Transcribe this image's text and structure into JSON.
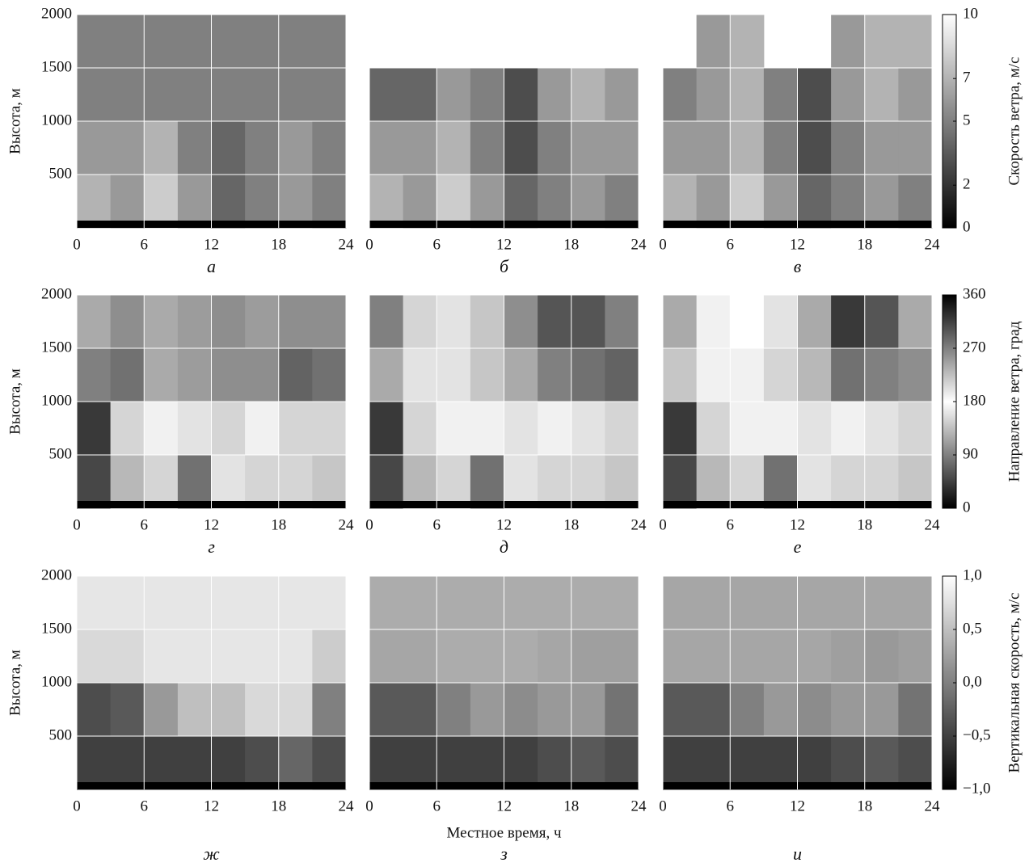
{
  "chart_data": [
    {
      "type": "heatmap",
      "title": "а",
      "ylabel": "Высота, м",
      "xlim": [
        0,
        24
      ],
      "ylim": [
        0,
        2000
      ],
      "xticks": [
        0,
        6,
        12,
        18,
        24
      ],
      "yticks": [
        500,
        1000,
        1500,
        2000
      ],
      "x": [
        1.5,
        4.5,
        7.5,
        10.5,
        13.5,
        16.5,
        19.5,
        22.5
      ],
      "y": [
        250,
        750,
        1250,
        1750
      ],
      "z": [
        [
          7,
          6,
          8,
          6,
          4,
          5,
          6,
          5
        ],
        [
          6,
          6,
          7,
          5,
          4,
          5,
          6,
          5
        ],
        [
          5,
          5,
          5,
          5,
          5,
          5,
          5,
          5
        ],
        [
          5,
          5,
          5,
          5,
          5,
          5,
          5,
          5
        ]
      ]
    },
    {
      "type": "heatmap",
      "title": "б",
      "xlim": [
        0,
        24
      ],
      "ylim": [
        0,
        2000
      ],
      "xticks": [
        0,
        6,
        12,
        18,
        24
      ],
      "yticks": [
        500,
        1000,
        1500,
        2000
      ],
      "x": [
        1.5,
        4.5,
        7.5,
        10.5,
        13.5,
        16.5,
        19.5,
        22.5
      ],
      "y": [
        250,
        750,
        1250,
        1750
      ],
      "z": [
        [
          7,
          6,
          8,
          6,
          4,
          5,
          6,
          5
        ],
        [
          6,
          6,
          7,
          5,
          3,
          5,
          6,
          6
        ],
        [
          4,
          4,
          6,
          5,
          3,
          6,
          7,
          6
        ],
        [
          null,
          null,
          null,
          null,
          null,
          null,
          null,
          null
        ]
      ]
    },
    {
      "type": "heatmap",
      "title": "в",
      "xlim": [
        0,
        24
      ],
      "ylim": [
        0,
        2000
      ],
      "xticks": [
        0,
        6,
        12,
        18,
        24
      ],
      "yticks": [
        500,
        1000,
        1500,
        2000
      ],
      "x": [
        1.5,
        4.5,
        7.5,
        10.5,
        13.5,
        16.5,
        19.5,
        22.5
      ],
      "y": [
        250,
        750,
        1250,
        1750
      ],
      "z": [
        [
          7,
          6,
          8,
          6,
          4,
          5,
          6,
          5
        ],
        [
          6,
          6,
          7,
          5,
          3,
          5,
          6,
          6
        ],
        [
          5,
          6,
          7,
          5,
          3,
          6,
          7,
          6
        ],
        [
          null,
          6,
          7,
          null,
          null,
          6,
          7,
          7
        ]
      ],
      "colorbar": {
        "label": "Скорость ветра, м/с",
        "colormap": "gray",
        "lim": [
          0,
          10
        ],
        "ticks": [
          0,
          2,
          5,
          7,
          10
        ]
      }
    },
    {
      "type": "heatmap",
      "title": "г",
      "ylabel": "Высота, м",
      "xlim": [
        0,
        24
      ],
      "ylim": [
        0,
        2000
      ],
      "xticks": [
        0,
        6,
        12,
        18,
        24
      ],
      "yticks": [
        500,
        1000,
        1500,
        2000
      ],
      "x": [
        1.5,
        4.5,
        7.5,
        10.5,
        13.5,
        16.5,
        19.5,
        22.5
      ],
      "y": [
        250,
        750,
        1250,
        1750
      ],
      "z": [
        [
          50,
          130,
          150,
          80,
          160,
          150,
          150,
          140
        ],
        [
          40,
          150,
          170,
          160,
          150,
          170,
          150,
          150
        ],
        [
          90,
          80,
          120,
          110,
          100,
          100,
          70,
          80
        ],
        [
          120,
          100,
          120,
          110,
          100,
          110,
          100,
          100
        ]
      ]
    },
    {
      "type": "heatmap",
      "title": "д",
      "xlim": [
        0,
        24
      ],
      "ylim": [
        0,
        2000
      ],
      "xticks": [
        0,
        6,
        12,
        18,
        24
      ],
      "yticks": [
        500,
        1000,
        1500,
        2000
      ],
      "x": [
        1.5,
        4.5,
        7.5,
        10.5,
        13.5,
        16.5,
        19.5,
        22.5
      ],
      "y": [
        250,
        750,
        1250,
        1750
      ],
      "z": [
        [
          50,
          130,
          150,
          80,
          160,
          150,
          150,
          140
        ],
        [
          40,
          150,
          170,
          170,
          200,
          170,
          160,
          150
        ],
        [
          120,
          160,
          160,
          140,
          120,
          90,
          80,
          70
        ],
        [
          90,
          150,
          160,
          140,
          100,
          60,
          60,
          90
        ]
      ]
    },
    {
      "type": "heatmap",
      "title": "е",
      "xlim": [
        0,
        24
      ],
      "ylim": [
        0,
        2000
      ],
      "xticks": [
        0,
        6,
        12,
        18,
        24
      ],
      "yticks": [
        500,
        1000,
        1500,
        2000
      ],
      "x": [
        1.5,
        4.5,
        7.5,
        10.5,
        13.5,
        16.5,
        19.5,
        22.5
      ],
      "y": [
        250,
        750,
        1250,
        1750
      ],
      "z": [
        [
          50,
          130,
          150,
          80,
          160,
          150,
          150,
          140
        ],
        [
          40,
          150,
          170,
          170,
          200,
          170,
          160,
          150
        ],
        [
          140,
          170,
          170,
          150,
          130,
          80,
          90,
          100
        ],
        [
          120,
          170,
          180,
          160,
          120,
          40,
          60,
          120
        ]
      ],
      "colorbar": {
        "label": "Направление ветра, град",
        "colormap": "cyclic-gray",
        "lim": [
          0,
          360
        ],
        "ticks": [
          0,
          90,
          180,
          270,
          360
        ]
      }
    },
    {
      "type": "heatmap",
      "title": "ж",
      "ylabel": "Высота, м",
      "xlim": [
        0,
        24
      ],
      "ylim": [
        0,
        2000
      ],
      "xticks": [
        0,
        6,
        12,
        18,
        24
      ],
      "yticks": [
        500,
        1000,
        1500,
        2000
      ],
      "x": [
        1.5,
        4.5,
        7.5,
        10.5,
        13.5,
        16.5,
        19.5,
        22.5
      ],
      "y": [
        250,
        750,
        1250,
        1750
      ],
      "z": [
        [
          -0.5,
          -0.5,
          -0.5,
          -0.5,
          -0.5,
          -0.4,
          -0.2,
          -0.4
        ],
        [
          -0.4,
          -0.3,
          0.2,
          0.5,
          0.5,
          0.7,
          0.7,
          0.0
        ],
        [
          0.7,
          0.7,
          0.8,
          0.8,
          0.8,
          0.8,
          0.8,
          0.6
        ],
        [
          0.8,
          0.8,
          0.8,
          0.8,
          0.8,
          0.8,
          0.8,
          0.8
        ]
      ]
    },
    {
      "type": "heatmap",
      "title": "з",
      "xlabel": "Местное время, ч",
      "xlim": [
        0,
        24
      ],
      "ylim": [
        0,
        2000
      ],
      "xticks": [
        0,
        6,
        12,
        18,
        24
      ],
      "yticks": [
        500,
        1000,
        1500,
        2000
      ],
      "x": [
        1.5,
        4.5,
        7.5,
        10.5,
        13.5,
        16.5,
        19.5,
        22.5
      ],
      "y": [
        250,
        750,
        1250,
        1750
      ],
      "z": [
        [
          -0.5,
          -0.5,
          -0.5,
          -0.5,
          -0.5,
          -0.4,
          -0.3,
          -0.4
        ],
        [
          -0.3,
          -0.3,
          0,
          0.2,
          0.1,
          0.2,
          0.2,
          -0.1
        ],
        [
          0.3,
          0.3,
          0.35,
          0.35,
          0.35,
          0.3,
          0.25,
          0.25
        ],
        [
          0.35,
          0.35,
          0.35,
          0.35,
          0.35,
          0.35,
          0.35,
          0.35
        ]
      ]
    },
    {
      "type": "heatmap",
      "title": "и",
      "xlim": [
        0,
        24
      ],
      "ylim": [
        0,
        2000
      ],
      "xticks": [
        0,
        6,
        12,
        18,
        24
      ],
      "yticks": [
        500,
        1000,
        1500,
        2000
      ],
      "x": [
        1.5,
        4.5,
        7.5,
        10.5,
        13.5,
        16.5,
        19.5,
        22.5
      ],
      "y": [
        250,
        750,
        1250,
        1750
      ],
      "z": [
        [
          -0.5,
          -0.5,
          -0.5,
          -0.5,
          -0.5,
          -0.4,
          -0.3,
          -0.4
        ],
        [
          -0.3,
          -0.3,
          0,
          0.2,
          0.1,
          0.2,
          0.2,
          -0.1
        ],
        [
          0.3,
          0.3,
          0.3,
          0.3,
          0.3,
          0.25,
          0.2,
          0.25
        ],
        [
          0.3,
          0.3,
          0.3,
          0.3,
          0.3,
          0.3,
          0.3,
          0.3
        ]
      ],
      "colorbar": {
        "label": "Вертикальная скорость, м/с",
        "colormap": "gray",
        "lim": [
          -1,
          1
        ],
        "ticks": [
          {
            "value": -1,
            "label": "−1,0"
          },
          {
            "value": -0.5,
            "label": "−0,5"
          },
          {
            "value": 0,
            "label": "0,0"
          },
          {
            "value": 0.5,
            "label": "0,5"
          },
          {
            "value": 1,
            "label": "1,0"
          }
        ]
      }
    }
  ]
}
